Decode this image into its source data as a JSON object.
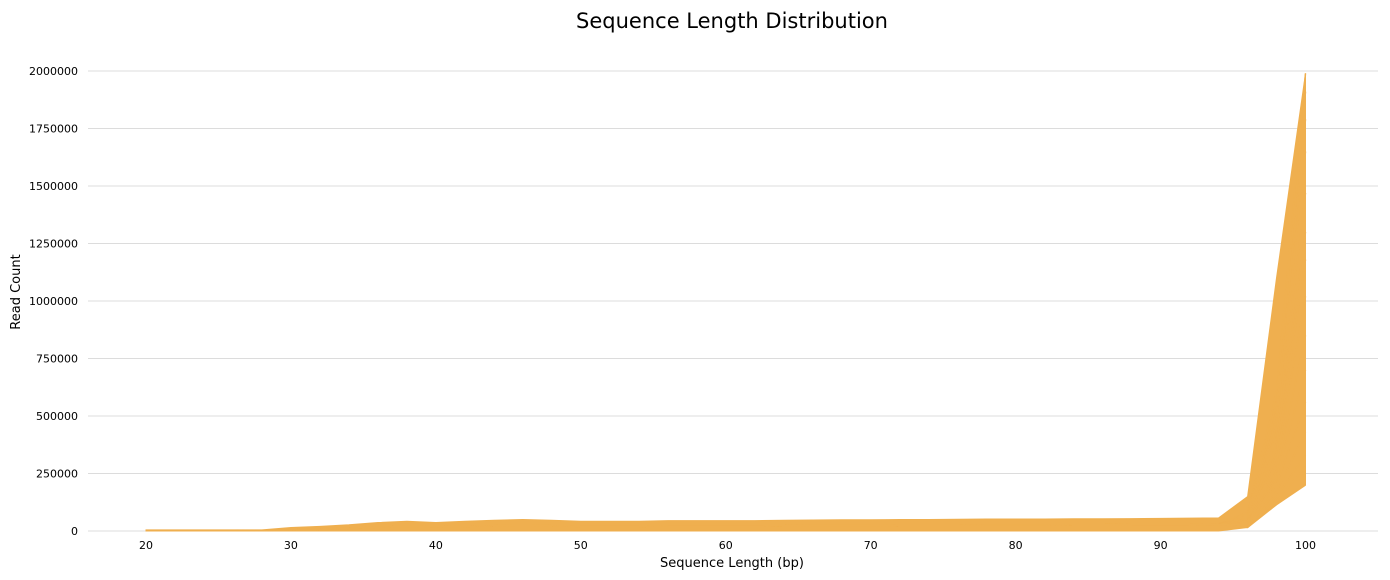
{
  "chart_data": {
    "type": "line",
    "title": "Sequence Length Distribution",
    "xlabel": "Sequence Length (bp)",
    "ylabel": "Read Count",
    "xlim": [
      16,
      105
    ],
    "ylim": [
      0,
      2000000
    ],
    "x_ticks": [
      20,
      30,
      40,
      50,
      60,
      70,
      80,
      90,
      100
    ],
    "y_ticks": [
      0,
      250000,
      500000,
      750000,
      1000000,
      1250000,
      1500000,
      1750000,
      2000000
    ],
    "grid": "horizontal",
    "legend": "none",
    "series_color": "#EFAF4F",
    "x": [
      20,
      22,
      24,
      26,
      28,
      30,
      32,
      34,
      36,
      38,
      40,
      42,
      44,
      46,
      48,
      50,
      52,
      54,
      56,
      58,
      60,
      62,
      64,
      66,
      68,
      70,
      72,
      74,
      76,
      78,
      80,
      82,
      84,
      86,
      88,
      90,
      92,
      94,
      96,
      98,
      100
    ],
    "band_lower": [
      0,
      0,
      0,
      0,
      0,
      0,
      0,
      0,
      0,
      0,
      0,
      0,
      0,
      0,
      0,
      0,
      0,
      0,
      0,
      0,
      0,
      0,
      0,
      0,
      0,
      0,
      0,
      0,
      0,
      0,
      0,
      0,
      0,
      0,
      0,
      0,
      0,
      0,
      15000,
      120000,
      200000
    ],
    "band_upper": [
      5000,
      5000,
      5000,
      5000,
      5000,
      15000,
      20000,
      27000,
      37000,
      42000,
      37000,
      42000,
      47000,
      50000,
      47000,
      42000,
      42000,
      42000,
      45000,
      45000,
      45000,
      45000,
      47000,
      48000,
      49000,
      49000,
      50000,
      50000,
      51000,
      52000,
      52000,
      52000,
      53000,
      53000,
      54000,
      55000,
      56000,
      57000,
      150000,
      1100000,
      1990000
    ],
    "series": [
      {
        "values": [
          1000,
          1000,
          1000,
          1000,
          2000,
          5000,
          8000,
          12000,
          17000,
          20000,
          18000,
          20000,
          23000,
          25000,
          23000,
          20000,
          20000,
          20000,
          22000,
          22000,
          22000,
          22000,
          23000,
          24000,
          24000,
          24000,
          25000,
          25000,
          25000,
          26000,
          26000,
          26000,
          27000,
          27000,
          28000,
          28000,
          28000,
          29000,
          80000,
          600000,
          1990000
        ]
      },
      {
        "values": [
          1000,
          1000,
          1000,
          1000,
          2000,
          5000,
          8000,
          12000,
          17000,
          20000,
          18000,
          20000,
          23000,
          25000,
          23000,
          20000,
          20000,
          20000,
          22000,
          22000,
          22000,
          22000,
          23000,
          24000,
          24000,
          24000,
          25000,
          25000,
          25000,
          26000,
          26000,
          26000,
          27000,
          27000,
          28000,
          28000,
          28000,
          29000,
          80000,
          560000,
          1910000
        ]
      },
      {
        "values": [
          1000,
          1000,
          1000,
          1000,
          2000,
          5000,
          8000,
          12000,
          17000,
          20000,
          18000,
          20000,
          23000,
          25000,
          23000,
          20000,
          20000,
          20000,
          22000,
          22000,
          22000,
          22000,
          23000,
          24000,
          24000,
          24000,
          25000,
          25000,
          25000,
          26000,
          26000,
          26000,
          27000,
          27000,
          28000,
          28000,
          28000,
          29000,
          75000,
          520000,
          1790000
        ]
      },
      {
        "values": [
          1000,
          1000,
          1000,
          1000,
          2000,
          5000,
          8000,
          12000,
          17000,
          20000,
          18000,
          20000,
          23000,
          25000,
          23000,
          20000,
          20000,
          20000,
          22000,
          22000,
          22000,
          22000,
          23000,
          24000,
          24000,
          24000,
          25000,
          25000,
          25000,
          26000,
          26000,
          26000,
          27000,
          27000,
          28000,
          28000,
          28000,
          29000,
          70000,
          480000,
          1650000
        ]
      },
      {
        "values": [
          1000,
          1000,
          1000,
          1000,
          2000,
          5000,
          8000,
          12000,
          17000,
          20000,
          18000,
          20000,
          23000,
          25000,
          23000,
          20000,
          20000,
          20000,
          22000,
          22000,
          22000,
          22000,
          23000,
          24000,
          24000,
          24000,
          25000,
          25000,
          25000,
          26000,
          26000,
          26000,
          27000,
          27000,
          28000,
          28000,
          28000,
          29000,
          65000,
          430000,
          1470000
        ]
      },
      {
        "values": [
          1000,
          1000,
          1000,
          1000,
          2000,
          5000,
          8000,
          12000,
          17000,
          20000,
          18000,
          20000,
          23000,
          25000,
          23000,
          20000,
          20000,
          20000,
          22000,
          22000,
          22000,
          22000,
          23000,
          24000,
          24000,
          24000,
          25000,
          25000,
          25000,
          26000,
          26000,
          26000,
          27000,
          27000,
          28000,
          28000,
          28000,
          29000,
          60000,
          380000,
          1300000
        ]
      },
      {
        "values": [
          1000,
          1000,
          1000,
          1000,
          2000,
          5000,
          8000,
          12000,
          17000,
          20000,
          18000,
          20000,
          23000,
          25000,
          23000,
          20000,
          20000,
          20000,
          22000,
          22000,
          22000,
          22000,
          23000,
          24000,
          24000,
          24000,
          25000,
          25000,
          25000,
          26000,
          26000,
          26000,
          27000,
          27000,
          28000,
          28000,
          28000,
          29000,
          55000,
          340000,
          1180000
        ]
      },
      {
        "values": [
          1000,
          1000,
          1000,
          1000,
          2000,
          5000,
          8000,
          12000,
          17000,
          20000,
          18000,
          20000,
          23000,
          25000,
          23000,
          20000,
          20000,
          20000,
          22000,
          22000,
          22000,
          22000,
          23000,
          24000,
          24000,
          24000,
          25000,
          25000,
          25000,
          26000,
          26000,
          26000,
          27000,
          27000,
          28000,
          28000,
          28000,
          29000,
          50000,
          300000,
          1020000
        ]
      },
      {
        "values": [
          1000,
          1000,
          1000,
          1000,
          2000,
          5000,
          8000,
          12000,
          17000,
          20000,
          18000,
          20000,
          23000,
          25000,
          23000,
          20000,
          20000,
          20000,
          22000,
          22000,
          22000,
          22000,
          23000,
          24000,
          24000,
          24000,
          25000,
          25000,
          25000,
          26000,
          26000,
          26000,
          27000,
          27000,
          28000,
          28000,
          28000,
          29000,
          45000,
          260000,
          850000
        ]
      },
      {
        "values": [
          1000,
          1000,
          1000,
          1000,
          2000,
          5000,
          8000,
          12000,
          17000,
          20000,
          18000,
          20000,
          23000,
          25000,
          23000,
          20000,
          20000,
          20000,
          22000,
          22000,
          22000,
          22000,
          23000,
          24000,
          24000,
          24000,
          25000,
          25000,
          25000,
          26000,
          26000,
          26000,
          27000,
          27000,
          28000,
          28000,
          28000,
          29000,
          42000,
          230000,
          700000
        ]
      },
      {
        "values": [
          1000,
          1000,
          1000,
          1000,
          2000,
          5000,
          8000,
          12000,
          17000,
          20000,
          18000,
          20000,
          23000,
          25000,
          23000,
          20000,
          20000,
          20000,
          22000,
          22000,
          22000,
          22000,
          23000,
          24000,
          24000,
          24000,
          25000,
          25000,
          25000,
          26000,
          26000,
          26000,
          27000,
          27000,
          28000,
          28000,
          28000,
          29000,
          38000,
          200000,
          560000
        ]
      },
      {
        "values": [
          1000,
          1000,
          1000,
          1000,
          2000,
          5000,
          8000,
          12000,
          17000,
          20000,
          18000,
          20000,
          23000,
          25000,
          23000,
          20000,
          20000,
          20000,
          22000,
          22000,
          22000,
          22000,
          23000,
          24000,
          24000,
          24000,
          25000,
          25000,
          25000,
          26000,
          26000,
          26000,
          27000,
          27000,
          28000,
          28000,
          28000,
          29000,
          35000,
          170000,
          430000
        ]
      },
      {
        "values": [
          1000,
          1000,
          1000,
          1000,
          2000,
          5000,
          8000,
          12000,
          17000,
          20000,
          18000,
          20000,
          23000,
          25000,
          23000,
          20000,
          20000,
          20000,
          22000,
          22000,
          22000,
          22000,
          23000,
          24000,
          24000,
          24000,
          25000,
          25000,
          25000,
          26000,
          26000,
          26000,
          27000,
          27000,
          28000,
          28000,
          28000,
          29000,
          32000,
          150000,
          330000
        ]
      },
      {
        "values": [
          1000,
          1000,
          1000,
          1000,
          2000,
          5000,
          8000,
          12000,
          17000,
          20000,
          18000,
          20000,
          23000,
          25000,
          23000,
          20000,
          20000,
          20000,
          22000,
          22000,
          22000,
          22000,
          23000,
          24000,
          24000,
          24000,
          25000,
          25000,
          25000,
          26000,
          26000,
          26000,
          27000,
          27000,
          28000,
          28000,
          28000,
          29000,
          28000,
          130000,
          280000
        ]
      },
      {
        "values": [
          1000,
          1000,
          1000,
          1000,
          2000,
          5000,
          8000,
          12000,
          17000,
          20000,
          18000,
          20000,
          23000,
          25000,
          23000,
          20000,
          20000,
          20000,
          22000,
          22000,
          22000,
          22000,
          23000,
          24000,
          24000,
          24000,
          25000,
          25000,
          25000,
          26000,
          26000,
          26000,
          27000,
          27000,
          28000,
          28000,
          28000,
          29000,
          15000,
          115000,
          200000
        ]
      }
    ]
  }
}
